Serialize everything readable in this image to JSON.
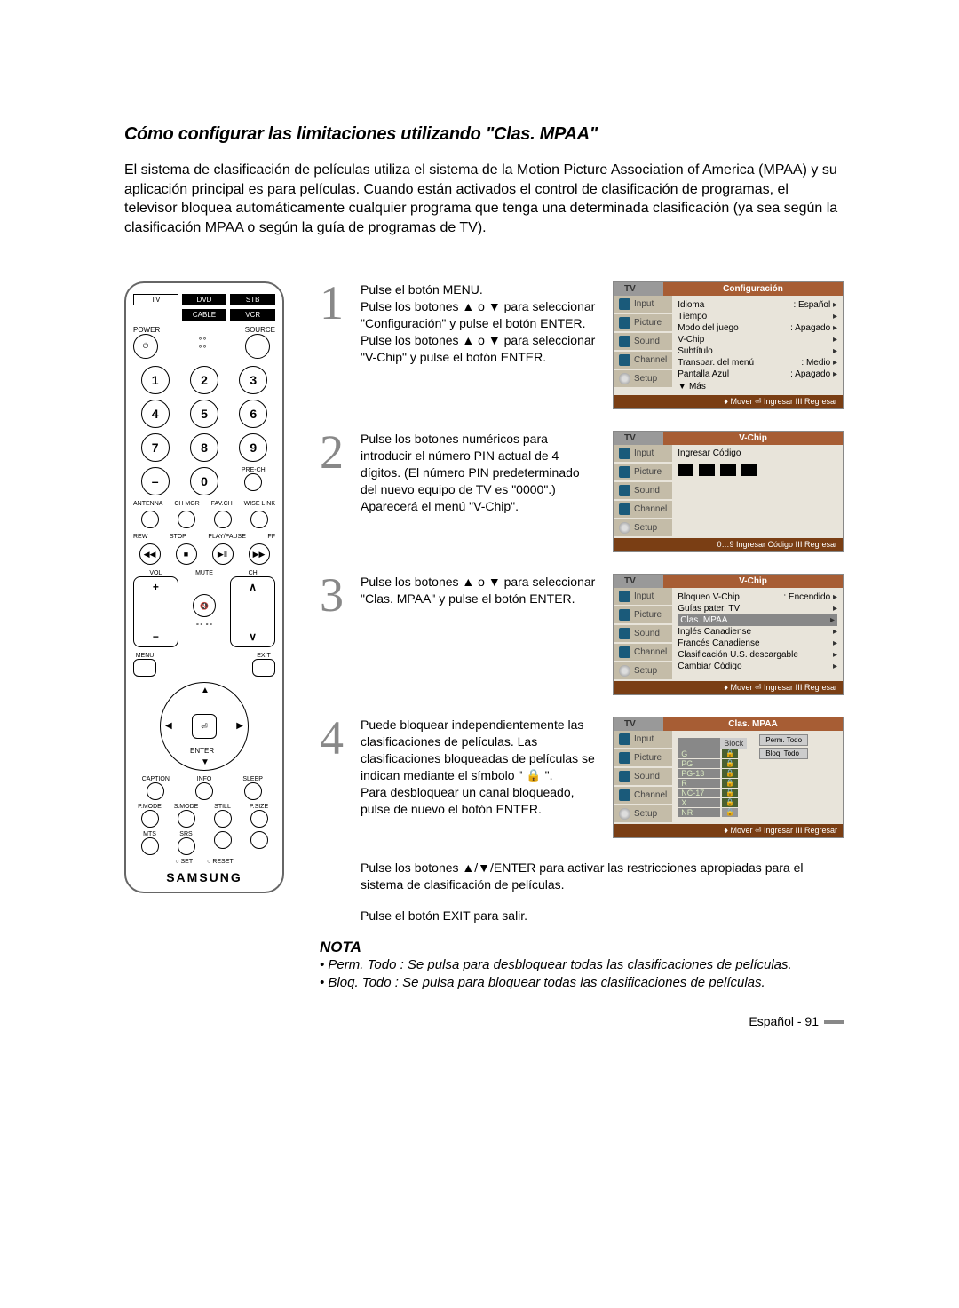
{
  "title": "Cómo configurar las limitaciones utilizando \"Clas. MPAA\"",
  "intro": "El sistema de clasificación de películas utiliza el sistema de la Motion Picture Association of America (MPAA) y su aplicación principal es para películas. Cuando están activados el control de clasificación de programas, el televisor bloquea automáticamente cualquier programa que tenga una determinada clasificación (ya sea según la clasificación MPAA o según la guía de programas de TV).",
  "remote": {
    "topLabels": [
      "TV",
      "DVD",
      "STB",
      "",
      "CABLE",
      "VCR"
    ],
    "powerLabel": "POWER",
    "sourceLabel": "SOURCE",
    "nums": [
      "1",
      "2",
      "3",
      "4",
      "5",
      "6",
      "7",
      "8",
      "9",
      "–",
      "0",
      ""
    ],
    "prech": "PRE-CH",
    "rowLabels": [
      "ANTENNA",
      "CH MGR",
      "FAV.CH",
      "WISE LINK"
    ],
    "transportLabels": [
      "REW",
      "STOP",
      "PLAY/PAUSE",
      "FF"
    ],
    "vol": "VOL",
    "ch": "CH",
    "mute": "MUTE",
    "menu": "MENU",
    "exit": "EXIT",
    "enter": "ENTER",
    "captionRow": [
      "CAPTION",
      "INFO",
      "SLEEP"
    ],
    "pmodeRow": [
      "P.MODE",
      "S.MODE",
      "STILL",
      "P.SIZE"
    ],
    "mtsRow": [
      "MTS",
      "SRS",
      "",
      ""
    ],
    "setLabel": "SET",
    "resetLabel": "RESET",
    "brand": "SAMSUNG"
  },
  "steps": {
    "s1": {
      "text": "Pulse el botón MENU.\nPulse los botones ▲ o ▼ para seleccionar \"Configuración\" y pulse el botón ENTER.\nPulse los botones ▲ o ▼ para seleccionar \"V-Chip\" y pulse el botón ENTER."
    },
    "s2": {
      "text": "Pulse los botones numéricos para introducir el número PIN actual de 4 dígitos. (El número PIN predeterminado del nuevo equipo de TV es \"0000\".)\nAparecerá el menú \"V-Chip\"."
    },
    "s3": {
      "text": "Pulse los botones ▲ o ▼ para seleccionar \"Clas. MPAA\" y pulse el botón ENTER."
    },
    "s4": {
      "text": "Puede bloquear independientemente las clasificaciones de películas. Las clasificaciones bloqueadas de películas se indican mediante el símbolo \" 🔒 \".\nPara desbloquear un canal bloqueado, pulse de nuevo el botón ENTER.",
      "extra1": "Pulse los botones ▲/▼/ENTER para activar las restricciones apropiadas para el sistema de clasificación de películas.",
      "extra2": "Pulse el botón EXIT para salir."
    }
  },
  "osd": {
    "tv": "TV",
    "tabs": [
      "Input",
      "Picture",
      "Sound",
      "Channel",
      "Setup"
    ],
    "footer_mover": "♦ Mover ⏎ Ingresar ⅠⅠⅠ Regresar",
    "footer_ingresar": "0…9 Ingresar Código ⅠⅠⅠ Regresar",
    "s1": {
      "title": "Configuración",
      "items": [
        {
          "l": "Idioma",
          "v": ": Español"
        },
        {
          "l": "Tiempo",
          "v": ""
        },
        {
          "l": "Modo del juego",
          "v": ": Apagado"
        },
        {
          "l": "V-Chip",
          "v": ""
        },
        {
          "l": "Subtítulo",
          "v": ""
        },
        {
          "l": "Transpar. del menú",
          "v": ": Medio"
        },
        {
          "l": "Pantalla Azul",
          "v": ": Apagado"
        }
      ],
      "more": "▼ Más"
    },
    "s2": {
      "title": "V-Chip",
      "label": "Ingresar Código"
    },
    "s3": {
      "title": "V-Chip",
      "items": [
        {
          "l": "Bloqueo V-Chip",
          "v": ": Encendido"
        },
        {
          "l": "Guías pater. TV",
          "v": ""
        },
        {
          "l": "Clas. MPAA",
          "v": "",
          "hl": true
        },
        {
          "l": "Inglés Canadiense",
          "v": ""
        },
        {
          "l": "Francés Canadiense",
          "v": ""
        },
        {
          "l": "Clasificación U.S. descargable",
          "v": ""
        },
        {
          "l": "Cambiar Código",
          "v": ""
        }
      ]
    },
    "s4": {
      "title": "Clas. MPAA",
      "block": "Block",
      "permTodo": "Perm. Todo",
      "bloqTodo": "Bloq. Todo",
      "ratings": [
        "G",
        "PG",
        "PG-13",
        "R",
        "NC-17",
        "X",
        "NR"
      ]
    }
  },
  "nota": {
    "heading": "NOTA",
    "li1": "Perm. Todo : Se pulsa para desbloquear todas las clasificaciones de películas.",
    "li2": "Bloq. Todo : Se pulsa para bloquear todas las clasificaciones de películas."
  },
  "footer": "Español - 91"
}
